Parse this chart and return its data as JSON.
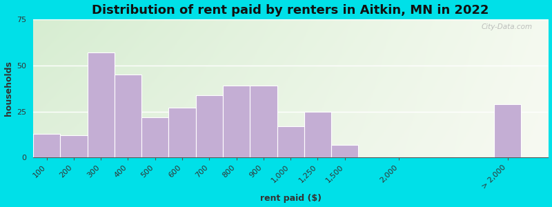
{
  "title": "Distribution of rent paid by renters in Aitkin, MN in 2022",
  "xlabel": "rent paid ($)",
  "ylabel": "households",
  "bar_labels": [
    "100",
    "200",
    "300",
    "400",
    "500",
    "600",
    "700",
    "800",
    "900",
    "1,000",
    "1,250",
    "1,500",
    "2,000",
    "> 2,000"
  ],
  "bar_values": [
    13,
    12,
    57,
    45,
    22,
    27,
    34,
    39,
    39,
    17,
    25,
    7,
    0,
    29
  ],
  "bar_positions": [
    0,
    1,
    2,
    3,
    4,
    5,
    6,
    7,
    8,
    9,
    10,
    11,
    13,
    17
  ],
  "bar_width": 1.0,
  "bar_color": "#c4aed4",
  "bar_edge_color": "#ffffff",
  "ylim": [
    0,
    75
  ],
  "yticks": [
    0,
    25,
    50,
    75
  ],
  "xlim": [
    -0.5,
    18.5
  ],
  "xtick_positions": [
    0,
    1,
    2,
    3,
    4,
    5,
    6,
    7,
    8,
    9,
    10,
    11,
    13,
    17
  ],
  "bg_outer": "#00e0e8",
  "title_fontsize": 13,
  "axis_label_fontsize": 9,
  "tick_fontsize": 8,
  "watermark": "City-Data.com"
}
